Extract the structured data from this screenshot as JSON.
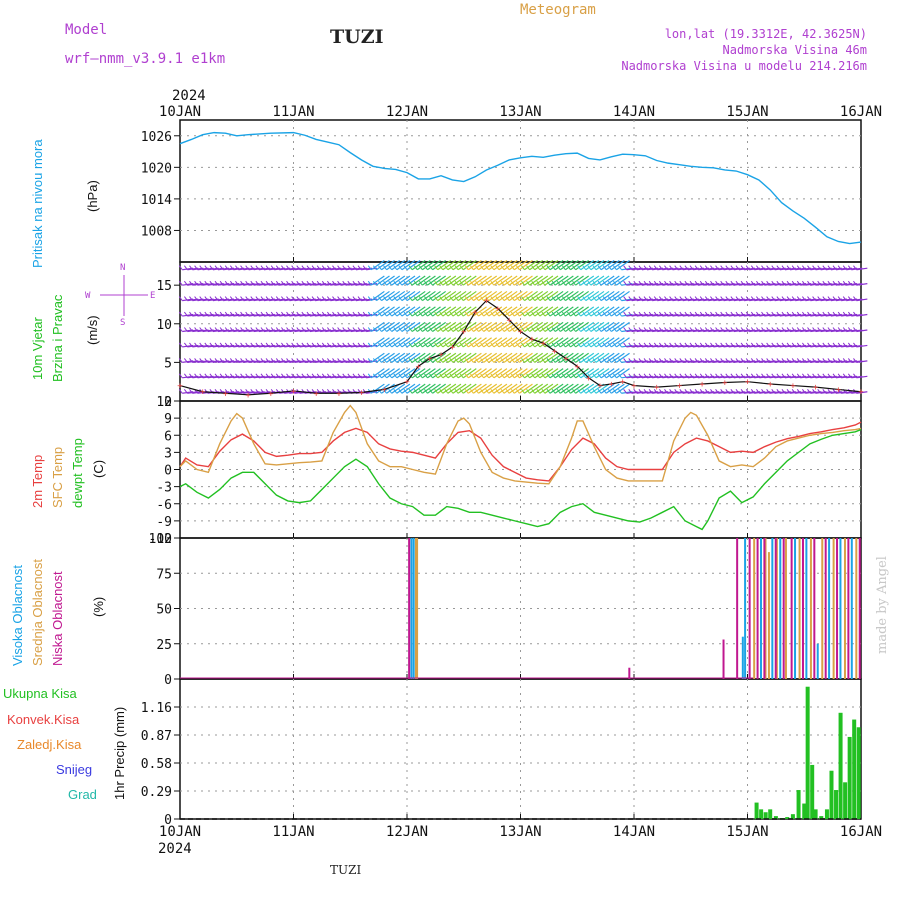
{
  "header": {
    "model_label": "Model",
    "model_name": "wrf—nmm_v3.9.1  e1km",
    "station": "TUZI",
    "meteogram_label": "Meteogram",
    "coords": "lon,lat (19.3312E, 42.3625N)",
    "elevation": "Nadmorska Visina 46m",
    "model_elevation": "Nadmorska Visina u modelu 214.216m",
    "year_top": "2024",
    "year_bottom": "2024",
    "footer_station": "TUZI",
    "watermark": "made by Angel"
  },
  "colors": {
    "pressure": "#1aa3e6",
    "temp2m": "#e84040",
    "sfc": "#d9a046",
    "dewpt": "#22c022",
    "precip": "#22c022",
    "wind_dir_label": "#b040d0",
    "cloud_high": "#1aa3e6",
    "cloud_mid": "#d9a046",
    "cloud_low": "#c01890",
    "gray": "#888888"
  },
  "chart_data": [
    {
      "type": "line",
      "panel": "pressure",
      "ylabel_main": "Pritisak na nivou mora",
      "ylabel_unit": "(hPa)",
      "x_ticks": [
        "10JAN",
        "11JAN",
        "12JAN",
        "13JAN",
        "14JAN",
        "15JAN",
        "16JAN"
      ],
      "xlim_days": [
        0,
        6
      ],
      "ylim": [
        1002,
        1029
      ],
      "yticks": [
        1008,
        1014,
        1020,
        1026
      ],
      "grid": true,
      "series": [
        {
          "color": "#1aa3e6",
          "x": [
            0,
            0.1,
            0.2,
            0.3,
            0.4,
            0.5,
            0.6,
            0.8,
            1.0,
            1.1,
            1.2,
            1.3,
            1.4,
            1.5,
            1.6,
            1.7,
            1.8,
            1.9,
            2.0,
            2.1,
            2.2,
            2.3,
            2.4,
            2.5,
            2.6,
            2.7,
            2.8,
            2.9,
            3.0,
            3.1,
            3.2,
            3.3,
            3.4,
            3.5,
            3.6,
            3.7,
            3.8,
            3.9,
            4.0,
            4.1,
            4.2,
            4.3,
            4.4,
            4.5,
            4.6,
            4.7,
            4.8,
            4.9,
            5.0,
            5.1,
            5.2,
            5.3,
            5.4,
            5.5,
            5.6,
            5.7,
            5.8,
            5.9,
            6.0
          ],
          "y": [
            1024.5,
            1025.3,
            1026.2,
            1026.6,
            1026.5,
            1026.0,
            1026.2,
            1026.5,
            1026.6,
            1026.1,
            1025.3,
            1024.8,
            1024.3,
            1022.8,
            1021.4,
            1020.2,
            1019.8,
            1019.6,
            1019.0,
            1017.8,
            1017.8,
            1018.4,
            1017.6,
            1017.3,
            1018.2,
            1019.5,
            1020.4,
            1021.4,
            1021.8,
            1022.1,
            1021.9,
            1022.3,
            1022.6,
            1022.7,
            1021.7,
            1021.4,
            1022.0,
            1022.5,
            1022.4,
            1022.2,
            1021.3,
            1020.8,
            1020.5,
            1020.2,
            1020.0,
            1019.9,
            1019.5,
            1019.3,
            1018.6,
            1017.6,
            1015.7,
            1013.3,
            1011.7,
            1010.3,
            1008.6,
            1006.8,
            1005.9,
            1005.5,
            1005.8
          ]
        }
      ]
    },
    {
      "type": "scatter",
      "panel": "wind",
      "ylabel_main": "10m Vjetar",
      "ylabel_sub": "Brzina i Pravac",
      "ylabel_unit": "(m/s)",
      "direction_legend": [
        "N",
        "W",
        "E",
        "S"
      ],
      "xlim_days": [
        0,
        6
      ],
      "ylim": [
        0,
        18
      ],
      "yticks": [
        0,
        5,
        10,
        15
      ],
      "grid": true,
      "speed_series": {
        "x": [
          0,
          0.2,
          0.4,
          0.6,
          0.8,
          1.0,
          1.2,
          1.4,
          1.6,
          1.8,
          2.0,
          2.1,
          2.2,
          2.3,
          2.4,
          2.5,
          2.6,
          2.7,
          2.8,
          2.9,
          3.0,
          3.1,
          3.2,
          3.3,
          3.4,
          3.5,
          3.6,
          3.7,
          3.8,
          3.9,
          4.0,
          4.2,
          4.4,
          4.6,
          4.8,
          5.0,
          5.2,
          5.4,
          5.6,
          5.8,
          6.0
        ],
        "y": [
          2.0,
          1.2,
          1.0,
          0.8,
          1.0,
          1.3,
          1.0,
          1.0,
          1.1,
          1.5,
          2.5,
          4.5,
          5.5,
          6.0,
          7.0,
          9.0,
          11.5,
          13.0,
          12.0,
          10.5,
          9.0,
          8.0,
          7.5,
          6.5,
          5.5,
          4.5,
          3.0,
          2.0,
          2.2,
          2.5,
          2.0,
          1.8,
          2.0,
          2.2,
          2.4,
          2.5,
          2.2,
          2.0,
          1.8,
          1.5,
          1.2
        ]
      },
      "barb_rows_ms": [
        1,
        3,
        5,
        7,
        9,
        11,
        13,
        15,
        17
      ]
    },
    {
      "type": "line",
      "panel": "temperature",
      "ylabel_t2m": "2m Temp",
      "ylabel_sfc": "SFC Temp",
      "ylabel_dew": "dewpt Temp",
      "ylabel_unit": "(C)",
      "xlim_days": [
        0,
        6
      ],
      "ylim": [
        -12,
        12
      ],
      "yticks": [
        -12,
        -9,
        -6,
        -3,
        0,
        3,
        6,
        9,
        12
      ],
      "grid": true,
      "series": [
        {
          "color": "#e84040",
          "x": [
            0,
            0.05,
            0.15,
            0.25,
            0.35,
            0.45,
            0.55,
            0.65,
            0.75,
            0.85,
            0.95,
            1.05,
            1.15,
            1.25,
            1.35,
            1.45,
            1.55,
            1.65,
            1.75,
            1.85,
            1.95,
            2.05,
            2.15,
            2.25,
            2.35,
            2.45,
            2.55,
            2.65,
            2.75,
            2.85,
            2.95,
            3.05,
            3.15,
            3.25,
            3.35,
            3.45,
            3.55,
            3.65,
            3.75,
            3.85,
            3.95,
            4.05,
            4.15,
            4.25,
            4.35,
            4.45,
            4.55,
            4.65,
            4.75,
            4.85,
            4.95,
            5.05,
            5.15,
            5.25,
            5.35,
            5.45,
            5.55,
            5.65,
            5.75,
            5.85,
            5.95,
            6.0
          ],
          "y": [
            0.5,
            2.0,
            0.8,
            0.5,
            3.2,
            5.2,
            6.2,
            5.0,
            3.0,
            2.3,
            2.5,
            2.8,
            2.8,
            3.0,
            5.0,
            6.5,
            7.2,
            6.5,
            4.5,
            3.6,
            3.2,
            3.0,
            2.5,
            2.0,
            4.5,
            6.5,
            6.8,
            5.5,
            2.5,
            0.5,
            -0.5,
            -1.5,
            -1.8,
            -2.0,
            0.5,
            3.5,
            5.5,
            4.5,
            2.0,
            0.5,
            0.0,
            0.0,
            0.0,
            0.0,
            3.0,
            4.5,
            5.5,
            5.0,
            4.0,
            3.0,
            3.2,
            3.0,
            4.0,
            4.8,
            5.4,
            5.8,
            6.3,
            6.6,
            7.0,
            7.3,
            7.8,
            8.3
          ]
        },
        {
          "color": "#d9a046",
          "x": [
            0,
            0.05,
            0.15,
            0.25,
            0.35,
            0.45,
            0.5,
            0.55,
            0.65,
            0.75,
            0.85,
            0.95,
            1.05,
            1.15,
            1.25,
            1.35,
            1.45,
            1.5,
            1.55,
            1.65,
            1.75,
            1.85,
            1.95,
            2.05,
            2.15,
            2.25,
            2.35,
            2.45,
            2.5,
            2.55,
            2.65,
            2.75,
            2.85,
            2.95,
            3.05,
            3.15,
            3.25,
            3.35,
            3.45,
            3.5,
            3.55,
            3.65,
            3.75,
            3.85,
            3.95,
            4.05,
            4.15,
            4.25,
            4.35,
            4.45,
            4.5,
            4.55,
            4.65,
            4.75,
            4.85,
            4.95,
            5.05,
            5.15,
            5.25,
            5.35,
            5.45,
            5.55,
            5.65,
            5.75,
            5.85,
            5.95,
            6.0
          ],
          "y": [
            0.5,
            1.5,
            0.0,
            -0.5,
            4.5,
            8.5,
            9.8,
            9.0,
            4.5,
            1.0,
            0.8,
            1.0,
            1.2,
            1.3,
            1.5,
            6.5,
            10.0,
            11.2,
            10.0,
            4.5,
            1.5,
            0.5,
            0.5,
            0.0,
            -0.5,
            -0.8,
            4.5,
            8.5,
            9.0,
            8.0,
            3.0,
            -0.5,
            -1.5,
            -2.0,
            -2.2,
            -2.4,
            -2.5,
            0.5,
            5.5,
            8.5,
            8.5,
            4.0,
            0.0,
            -1.5,
            -2.0,
            -2.0,
            -2.0,
            -2.0,
            5.0,
            9.0,
            10.0,
            9.5,
            6.0,
            1.5,
            0.5,
            0.8,
            0.5,
            2.0,
            4.0,
            5.0,
            5.5,
            6.0,
            6.3,
            6.5,
            6.8,
            7.0,
            7.2
          ]
        },
        {
          "color": "#22c022",
          "x": [
            0,
            0.05,
            0.15,
            0.25,
            0.35,
            0.45,
            0.55,
            0.65,
            0.75,
            0.85,
            0.95,
            1.05,
            1.15,
            1.25,
            1.35,
            1.45,
            1.55,
            1.65,
            1.75,
            1.85,
            1.95,
            2.05,
            2.15,
            2.25,
            2.35,
            2.45,
            2.55,
            2.65,
            2.75,
            2.85,
            2.95,
            3.05,
            3.15,
            3.25,
            3.35,
            3.45,
            3.55,
            3.65,
            3.75,
            3.85,
            3.95,
            4.05,
            4.15,
            4.25,
            4.35,
            4.45,
            4.55,
            4.6,
            4.65,
            4.75,
            4.85,
            4.95,
            5.05,
            5.15,
            5.25,
            5.35,
            5.45,
            5.55,
            5.65,
            5.75,
            5.85,
            5.95,
            6.0
          ],
          "y": [
            -3.0,
            -2.5,
            -4.0,
            -5.0,
            -3.5,
            -1.5,
            -0.5,
            -0.5,
            -2.5,
            -4.5,
            -5.5,
            -5.8,
            -5.5,
            -3.5,
            -1.5,
            0.5,
            1.8,
            0.5,
            -2.5,
            -5.0,
            -6.0,
            -6.5,
            -8.0,
            -8.0,
            -6.5,
            -6.8,
            -7.5,
            -7.5,
            -8.0,
            -8.5,
            -9.0,
            -9.5,
            -10.0,
            -9.5,
            -7.5,
            -6.5,
            -6.0,
            -7.5,
            -8.0,
            -8.5,
            -9.0,
            -9.2,
            -8.5,
            -7.5,
            -6.5,
            -9.0,
            -10.0,
            -10.5,
            -9.0,
            -5.0,
            -3.8,
            -5.8,
            -4.8,
            -2.5,
            -0.5,
            1.5,
            3.0,
            4.5,
            5.3,
            6.0,
            6.3,
            6.6,
            7.0
          ]
        }
      ]
    },
    {
      "type": "bar",
      "panel": "cloud",
      "ylabel_high": "Visoka Oblacnost",
      "ylabel_mid": "Srednja Oblacnost",
      "ylabel_low": "Niska Oblacnost",
      "ylabel_unit": "(%)",
      "xlim_days": [
        0,
        6
      ],
      "ylim": [
        0,
        100
      ],
      "yticks": [
        0,
        25,
        50,
        75,
        100
      ],
      "grid": true,
      "series": [
        {
          "name": "Visoka Oblacnost",
          "color": "#1aa3e6",
          "x": [
            2.03,
            2.05,
            4.95,
            4.97,
            5.11,
            5.21,
            5.28,
            5.41,
            5.51,
            5.61,
            5.71,
            5.81,
            5.91
          ],
          "values": [
            100,
            100,
            30,
            100,
            100,
            100,
            100,
            100,
            100,
            25,
            100,
            100,
            100
          ]
        },
        {
          "name": "Srednja Oblacnost",
          "color": "#d9a046",
          "x": [
            2.07,
            2.08,
            5.05,
            5.15,
            5.18,
            5.25,
            5.33,
            5.45,
            5.55,
            5.65,
            5.75,
            5.85,
            5.95
          ],
          "values": [
            100,
            100,
            100,
            100,
            90,
            100,
            100,
            100,
            100,
            100,
            100,
            100,
            100
          ]
        },
        {
          "name": "Niska Oblacnost",
          "color": "#c01890",
          "x": [
            2.01,
            3.95,
            4.78,
            4.9,
            5.01,
            5.08,
            5.14,
            5.24,
            5.31,
            5.38,
            5.48,
            5.58,
            5.68,
            5.78,
            5.88,
            5.98
          ],
          "values": [
            100,
            8,
            28,
            100,
            100,
            100,
            100,
            100,
            100,
            100,
            100,
            100,
            100,
            100,
            100,
            100
          ]
        }
      ]
    },
    {
      "type": "bar",
      "panel": "precip",
      "legend": [
        "Ukupna Kisa",
        "Konvek.Kisa",
        "Zaledj.Kisa",
        "Snijeg",
        "Grad"
      ],
      "legend_colors": [
        "#22c022",
        "#e84040",
        "#e8882a",
        "#3a3ae0",
        "#22b8a8"
      ],
      "ylabel": "1hr Precip (mm)",
      "xlim_days": [
        0,
        6
      ],
      "ylim": [
        0,
        1.45
      ],
      "yticks": [
        0,
        0.29,
        0.58,
        0.87,
        1.16
      ],
      "ytick_labels": [
        "0",
        "0.29",
        "0.58",
        "0.87",
        "1.16"
      ],
      "grid": true,
      "series": [
        {
          "name": "Ukupna Kisa",
          "color": "#22c022",
          "x": [
            5.08,
            5.12,
            5.16,
            5.2,
            5.25,
            5.3,
            5.35,
            5.4,
            5.45,
            5.5,
            5.53,
            5.57,
            5.6,
            5.65,
            5.7,
            5.74,
            5.78,
            5.82,
            5.86,
            5.9,
            5.94,
            5.98
          ],
          "values": [
            0.17,
            0.1,
            0.07,
            0.1,
            0.03,
            0.01,
            0.02,
            0.05,
            0.3,
            0.16,
            1.37,
            0.56,
            0.1,
            0.03,
            0.1,
            0.5,
            0.3,
            1.1,
            0.38,
            0.85,
            1.03,
            0.95
          ]
        }
      ]
    }
  ]
}
